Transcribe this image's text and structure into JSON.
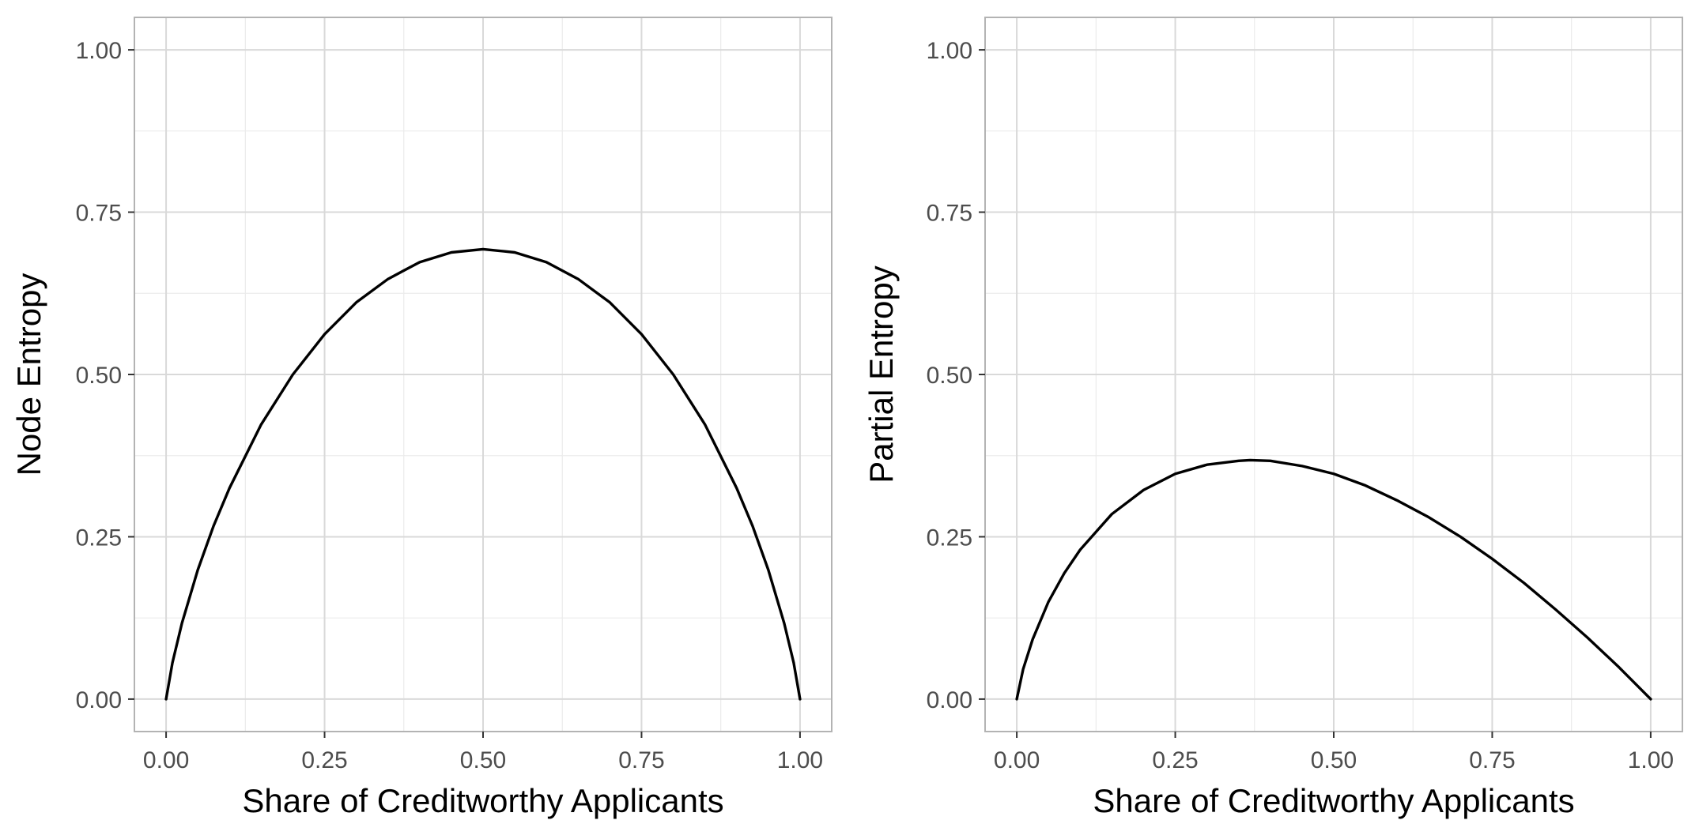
{
  "chart_data": [
    {
      "type": "line",
      "title": "",
      "xlabel": "Share of Creditworthy Applicants",
      "ylabel": "Node Entropy",
      "xlim": [
        -0.05,
        1.05
      ],
      "ylim": [
        -0.05,
        1.05
      ],
      "x_ticks": [
        "0.00",
        "0.25",
        "0.50",
        "0.75",
        "1.00"
      ],
      "y_ticks": [
        "0.00",
        "0.25",
        "0.50",
        "0.75",
        "1.00"
      ],
      "grid": true,
      "series": [
        {
          "color": "#000000",
          "x": [
            0.0,
            0.01,
            0.025,
            0.05,
            0.075,
            0.1,
            0.15,
            0.2,
            0.25,
            0.3,
            0.35,
            0.4,
            0.45,
            0.5,
            0.55,
            0.6,
            0.65,
            0.7,
            0.75,
            0.8,
            0.85,
            0.9,
            0.925,
            0.95,
            0.975,
            0.99,
            1.0
          ],
          "y": [
            0.0,
            0.056,
            0.117,
            0.199,
            0.267,
            0.325,
            0.423,
            0.5,
            0.562,
            0.611,
            0.647,
            0.673,
            0.688,
            0.693,
            0.688,
            0.673,
            0.647,
            0.611,
            0.562,
            0.5,
            0.423,
            0.325,
            0.267,
            0.199,
            0.117,
            0.056,
            0.0
          ]
        }
      ]
    },
    {
      "type": "line",
      "title": "",
      "xlabel": "Share of Creditworthy Applicants",
      "ylabel": "Partial Entropy",
      "xlim": [
        -0.05,
        1.05
      ],
      "ylim": [
        -0.05,
        1.05
      ],
      "x_ticks": [
        "0.00",
        "0.25",
        "0.50",
        "0.75",
        "1.00"
      ],
      "y_ticks": [
        "0.00",
        "0.25",
        "0.50",
        "0.75",
        "1.00"
      ],
      "grid": true,
      "series": [
        {
          "color": "#000000",
          "x": [
            0.0,
            0.01,
            0.025,
            0.05,
            0.075,
            0.1,
            0.15,
            0.2,
            0.25,
            0.3,
            0.35,
            0.368,
            0.4,
            0.45,
            0.5,
            0.55,
            0.6,
            0.65,
            0.7,
            0.75,
            0.8,
            0.85,
            0.9,
            0.95,
            1.0
          ],
          "y": [
            0.0,
            0.046,
            0.092,
            0.15,
            0.194,
            0.23,
            0.285,
            0.322,
            0.347,
            0.361,
            0.367,
            0.368,
            0.367,
            0.359,
            0.347,
            0.329,
            0.306,
            0.28,
            0.25,
            0.216,
            0.179,
            0.138,
            0.095,
            0.049,
            0.0
          ]
        }
      ]
    }
  ]
}
